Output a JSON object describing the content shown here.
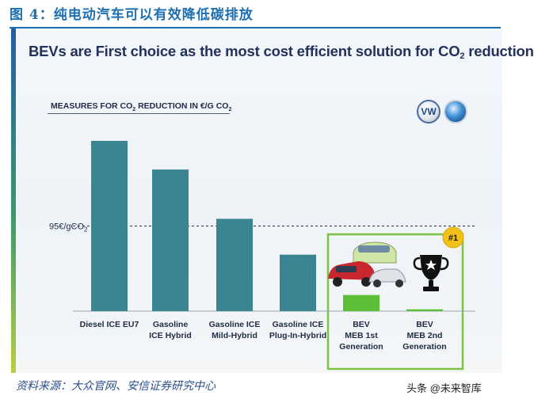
{
  "figure": {
    "title": "图 4：纯电动汽车可以有效降低碳排放",
    "source": "资料来源：大众官网、安信证券研究中心",
    "watermark": "头条 @未来智库"
  },
  "colors": {
    "bar_main": "#3b8593",
    "bar_bev": "#5cc037",
    "bev_box_border": "#7cc243",
    "badge_fill": "#f2c21b",
    "title_blue": "#1d6fb0"
  },
  "icons": [
    "vw-logo-icon",
    "blue-emblem-icon",
    "ev-cars-icon",
    "trophy-icon"
  ],
  "chart_data": {
    "type": "bar",
    "headline": "BEVs are First choice as the most cost efficient solution for CO2 reduction",
    "ylabel": "MEASURES FOR CO2 REDUCTION IN €/G CO2",
    "categories": [
      "Diesel ICE EU7",
      "Gasoline ICE Hybrid",
      "Gasoline ICE Mild-Hybrid",
      "Gasoline ICE Plug-In-Hybrid",
      "BEV MEB 1st Generation",
      "BEV MEB 2nd Generation"
    ],
    "category_lines": [
      [
        "Diesel ICE EU7"
      ],
      [
        "Gasoline",
        "ICE Hybrid"
      ],
      [
        "Gasoline ICE",
        "Mild-Hybrid"
      ],
      [
        "Gasoline ICE",
        "Plug-In-Hybrid"
      ],
      [
        "BEV",
        "MEB 1st",
        "Generation"
      ],
      [
        "BEV",
        "MEB 2nd",
        "Generation"
      ]
    ],
    "values": [
      190,
      158,
      103,
      63,
      18,
      2
    ],
    "ylim": [
      0,
      250
    ],
    "reference_line": {
      "value": 95,
      "label": "95€/gCO2"
    },
    "highlight": {
      "categories": [
        "BEV MEB 1st Generation",
        "BEV MEB 2nd Generation"
      ],
      "badge": "#1"
    },
    "grid": false,
    "legend": "none"
  }
}
